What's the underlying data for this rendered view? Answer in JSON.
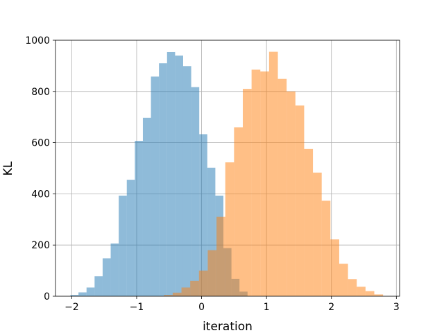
{
  "chart_data": {
    "type": "bar",
    "subtype": "overlapping-histogram",
    "title": "",
    "xlabel": "iteration",
    "ylabel": "KL",
    "xlim": [
      -2.25,
      3.05
    ],
    "ylim": [
      0,
      1000
    ],
    "xticks": [
      -2,
      -1,
      0,
      1,
      2,
      3
    ],
    "xtick_labels": [
      "−2",
      "−1",
      "0",
      "1",
      "2",
      "3"
    ],
    "yticks": [
      0,
      200,
      400,
      600,
      800,
      1000
    ],
    "ytick_labels": [
      "0",
      "200",
      "400",
      "600",
      "800",
      "1000"
    ],
    "grid": true,
    "legend": false,
    "series": [
      {
        "color": "#1f77b4",
        "alpha": 0.5,
        "bin_edges": [
          -2.02,
          -1.896,
          -1.772,
          -1.648,
          -1.524,
          -1.4,
          -1.276,
          -1.152,
          -1.028,
          -0.904,
          -0.78,
          -0.656,
          -0.532,
          -0.408,
          -0.284,
          -0.16,
          -0.036,
          0.088,
          0.212,
          0.336,
          0.46,
          0.584,
          0.708
        ],
        "counts": [
          5,
          15,
          34,
          78,
          148,
          206,
          393,
          455,
          607,
          697,
          858,
          910,
          954,
          940,
          899,
          817,
          633,
          502,
          393,
          188,
          68,
          18
        ]
      },
      {
        "color": "#ff7f0e",
        "alpha": 0.5,
        "bin_edges": [
          -0.58,
          -0.445,
          -0.31,
          -0.175,
          -0.04,
          0.095,
          0.23,
          0.365,
          0.5,
          0.635,
          0.77,
          0.905,
          1.04,
          1.175,
          1.31,
          1.445,
          1.58,
          1.715,
          1.85,
          1.985,
          2.12,
          2.255,
          2.39,
          2.525,
          2.66,
          2.795
        ],
        "counts": [
          5,
          14,
          34,
          60,
          100,
          180,
          310,
          523,
          660,
          810,
          885,
          878,
          955,
          849,
          800,
          745,
          575,
          483,
          373,
          222,
          127,
          67,
          37,
          20,
          7
        ]
      }
    ]
  }
}
